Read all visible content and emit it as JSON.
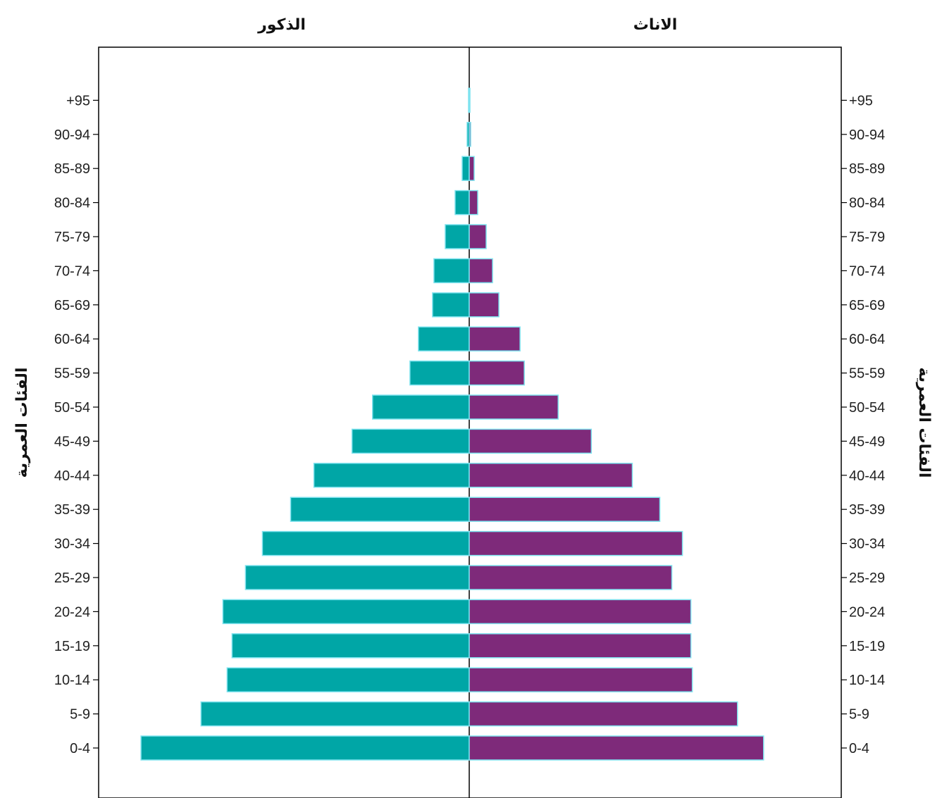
{
  "chart_data": {
    "type": "bar",
    "orientation": "horizontal-population-pyramid",
    "left_panel_title": "الذكور",
    "right_panel_title": "الاناث",
    "ylabel": "الفئات العمرية",
    "categories": [
      "0-4",
      "5-9",
      "10-14",
      "15-19",
      "20-24",
      "25-29",
      "30-34",
      "35-39",
      "40-44",
      "45-49",
      "50-54",
      "55-59",
      "60-64",
      "65-69",
      "70-74",
      "75-79",
      "80-84",
      "85-89",
      "90-94",
      "+95"
    ],
    "series": [
      {
        "name": "الذكور",
        "color": "#00A6A6",
        "values": [
          465,
          380,
          343,
          336,
          349,
          317,
          293,
          253,
          220,
          166,
          137,
          84,
          72,
          52,
          50,
          34,
          20,
          10,
          3,
          1
        ]
      },
      {
        "name": "الاناث",
        "color": "#7E2A7A",
        "values": [
          417,
          380,
          316,
          314,
          314,
          287,
          302,
          270,
          231,
          173,
          126,
          78,
          72,
          42,
          33,
          24,
          12,
          7,
          2,
          1
        ]
      }
    ],
    "xlim": [
      -525,
      525
    ],
    "grid": false,
    "legend": "none"
  }
}
